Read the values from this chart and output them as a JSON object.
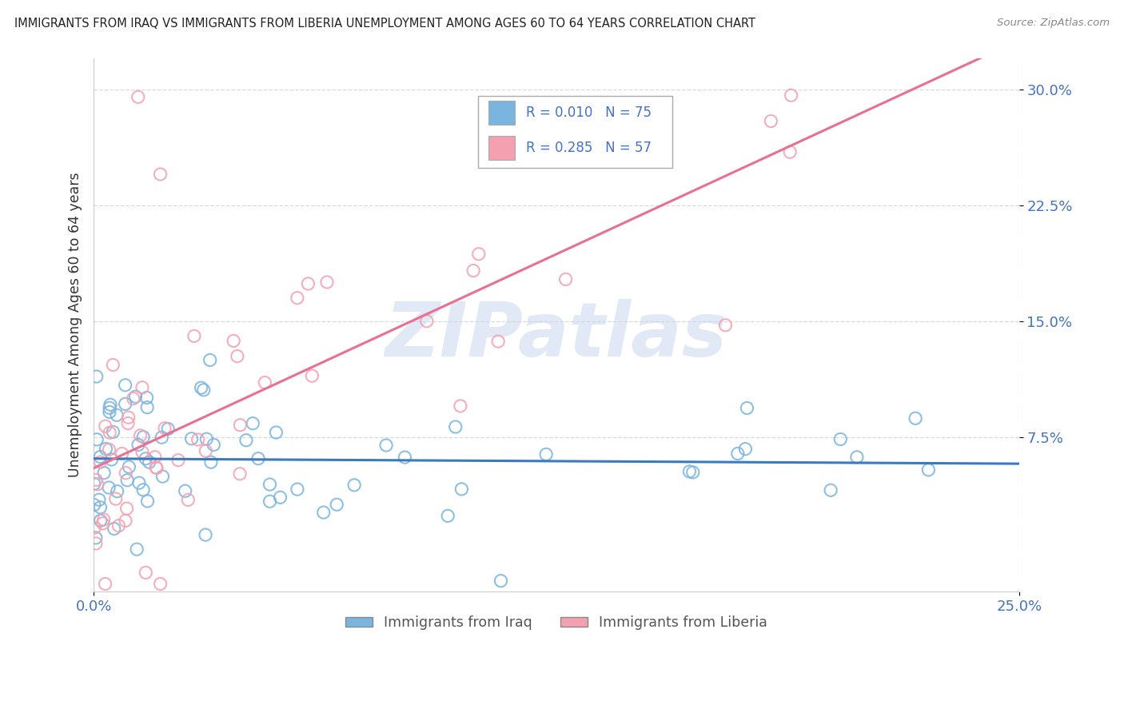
{
  "title": "IMMIGRANTS FROM IRAQ VS IMMIGRANTS FROM LIBERIA UNEMPLOYMENT AMONG AGES 60 TO 64 YEARS CORRELATION CHART",
  "source": "Source: ZipAtlas.com",
  "ylabel": "Unemployment Among Ages 60 to 64 years",
  "xlim": [
    0.0,
    0.25
  ],
  "ylim": [
    -0.025,
    0.32
  ],
  "yticks": [
    0.075,
    0.15,
    0.225,
    0.3
  ],
  "yticklabels": [
    "7.5%",
    "15.0%",
    "22.5%",
    "30.0%"
  ],
  "xticks": [
    0.0,
    0.25
  ],
  "xticklabels": [
    "0.0%",
    "25.0%"
  ],
  "legend_iraq_R": "0.010",
  "legend_iraq_N": "75",
  "legend_liberia_R": "0.285",
  "legend_liberia_N": "57",
  "watermark": "ZIPatlas",
  "iraq_color": "#7ab5e0",
  "liberia_color": "#f4a0b0",
  "iraq_line_color": "#3a7abf",
  "liberia_line_color": "#e87090",
  "background_color": "#ffffff",
  "grid_color": "#d0d0d0",
  "tick_label_color": "#4472c4",
  "title_color": "#222222",
  "source_color": "#888888",
  "ylabel_color": "#333333",
  "bottom_label_color": "#555555",
  "legend_text_color": "#4472c4"
}
